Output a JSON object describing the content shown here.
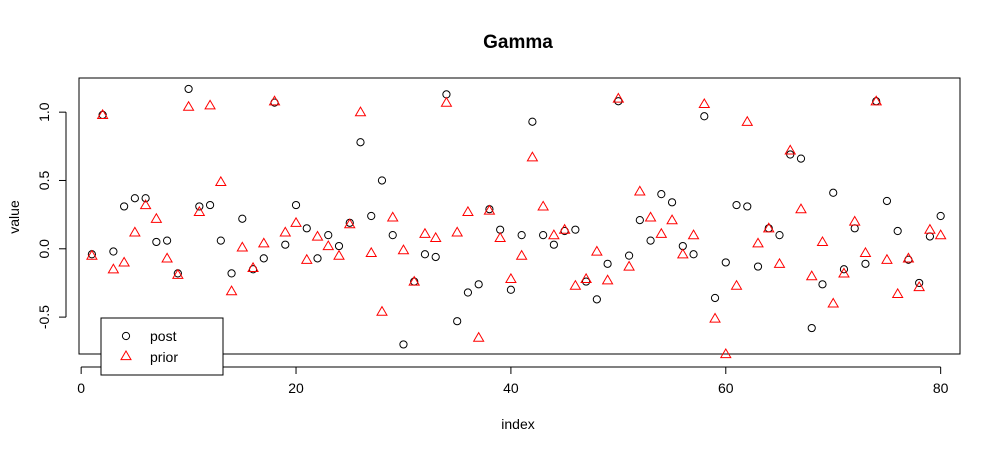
{
  "chart_data": {
    "type": "scatter",
    "title": "Gamma",
    "xlabel": "index",
    "ylabel": "value",
    "xlim": [
      -0.2,
      81.8
    ],
    "ylim": [
      -0.77,
      1.25
    ],
    "x_ticks": [
      0,
      20,
      40,
      60,
      80
    ],
    "y_ticks": [
      -0.5,
      0.0,
      0.5,
      1.0
    ],
    "x_tick_labels": [
      "0",
      "20",
      "40",
      "60",
      "80"
    ],
    "y_tick_labels": [
      "-0.5",
      "0.0",
      "0.5",
      "1.0"
    ],
    "grid": false,
    "legend_position": "bottom-left",
    "legend": [
      {
        "label": "post",
        "marker": "circle",
        "color": "#000000"
      },
      {
        "label": "prior",
        "marker": "triangle",
        "color": "#ff0000"
      }
    ],
    "series": [
      {
        "name": "post",
        "marker": "circle",
        "color": "#000000",
        "x": [
          1,
          2,
          3,
          4,
          5,
          6,
          7,
          8,
          9,
          10,
          11,
          12,
          13,
          14,
          15,
          16,
          17,
          18,
          19,
          20,
          21,
          22,
          23,
          24,
          25,
          26,
          27,
          28,
          29,
          30,
          31,
          32,
          33,
          34,
          35,
          36,
          37,
          38,
          39,
          40,
          41,
          42,
          43,
          44,
          45,
          46,
          47,
          48,
          49,
          50,
          51,
          52,
          53,
          54,
          55,
          56,
          57,
          58,
          59,
          60,
          61,
          62,
          63,
          64,
          65,
          66,
          67,
          68,
          69,
          70,
          71,
          72,
          73,
          74,
          75,
          76,
          77,
          78,
          79,
          80
        ],
        "y": [
          -0.04,
          0.98,
          -0.02,
          0.31,
          0.37,
          0.37,
          0.05,
          0.06,
          -0.18,
          1.17,
          0.31,
          0.32,
          0.06,
          -0.18,
          0.22,
          -0.15,
          -0.07,
          1.07,
          0.03,
          0.32,
          0.15,
          -0.07,
          0.1,
          0.02,
          0.19,
          0.78,
          0.24,
          0.5,
          0.1,
          -0.7,
          -0.24,
          -0.04,
          -0.06,
          1.13,
          -0.53,
          -0.32,
          -0.26,
          0.29,
          0.14,
          -0.3,
          0.1,
          0.93,
          0.1,
          0.03,
          0.13,
          0.14,
          -0.24,
          -0.37,
          -0.11,
          1.08,
          -0.05,
          0.21,
          0.06,
          0.4,
          0.34,
          0.02,
          -0.04,
          0.97,
          -0.36,
          -0.1,
          0.32,
          0.31,
          -0.13,
          0.15,
          0.1,
          0.69,
          0.66,
          -0.58,
          -0.26,
          0.41,
          -0.15,
          0.15,
          -0.11,
          1.08,
          0.35,
          0.13,
          -0.08,
          -0.25,
          0.09,
          0.24
        ]
      },
      {
        "name": "prior",
        "marker": "triangle",
        "color": "#ff0000",
        "x": [
          1,
          2,
          3,
          4,
          5,
          6,
          7,
          8,
          9,
          10,
          11,
          12,
          13,
          14,
          15,
          16,
          17,
          18,
          19,
          20,
          21,
          22,
          23,
          24,
          25,
          26,
          27,
          28,
          29,
          30,
          31,
          32,
          33,
          34,
          35,
          36,
          37,
          38,
          39,
          40,
          41,
          42,
          43,
          44,
          45,
          46,
          47,
          48,
          49,
          50,
          51,
          52,
          53,
          54,
          55,
          56,
          57,
          58,
          59,
          60,
          61,
          62,
          63,
          64,
          65,
          66,
          67,
          68,
          69,
          70,
          71,
          72,
          73,
          74,
          75,
          76,
          77,
          78,
          79,
          80
        ],
        "y": [
          -0.05,
          0.98,
          -0.15,
          -0.1,
          0.12,
          0.32,
          0.22,
          -0.07,
          -0.19,
          1.04,
          0.27,
          1.05,
          0.49,
          -0.31,
          0.01,
          -0.14,
          0.04,
          1.08,
          0.12,
          0.19,
          -0.08,
          0.09,
          0.02,
          -0.05,
          0.18,
          1.0,
          -0.03,
          -0.46,
          0.23,
          -0.01,
          -0.24,
          0.11,
          0.08,
          1.07,
          0.12,
          0.27,
          -0.65,
          0.28,
          0.08,
          -0.22,
          -0.05,
          0.67,
          0.31,
          0.1,
          0.14,
          -0.27,
          -0.22,
          -0.02,
          -0.23,
          1.1,
          -0.13,
          0.42,
          0.23,
          0.11,
          0.21,
          -0.04,
          0.1,
          1.06,
          -0.51,
          -0.77,
          -0.27,
          0.93,
          0.04,
          0.15,
          -0.11,
          0.72,
          0.29,
          -0.2,
          0.05,
          -0.4,
          -0.18,
          0.2,
          -0.03,
          1.08,
          -0.08,
          -0.33,
          -0.07,
          -0.28,
          0.14,
          0.1
        ]
      }
    ]
  }
}
